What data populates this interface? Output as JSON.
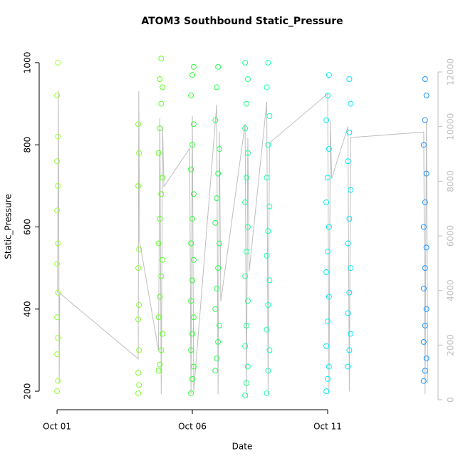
{
  "chart_data": {
    "type": "scatter",
    "title": "ATOM3 Southbound Static_Pressure",
    "xlabel": "Date",
    "ylabel": "Static_Pressure",
    "xlim": [
      -0.66,
      14.08
    ],
    "xticks": [
      {
        "value": 0,
        "label": "Oct 01"
      },
      {
        "value": 5,
        "label": "Oct 06"
      },
      {
        "value": 10,
        "label": "Oct 11"
      }
    ],
    "ylim": [
      155,
      1045
    ],
    "yticks": [
      200,
      400,
      600,
      800,
      1000
    ],
    "y2lim": [
      -365,
      13017
    ],
    "y2ticks": [
      0,
      2000,
      4000,
      6000,
      8000,
      10000,
      12000
    ],
    "y2color": "#bebebe",
    "series": [
      {
        "color": "#9aff3a",
        "x": [
          0,
          0.03,
          0,
          0.03,
          0,
          0.03,
          0,
          0.03,
          0,
          0.03,
          0,
          0.03,
          0,
          0.03
        ],
        "values": [
          200,
          225,
          290,
          330,
          380,
          440,
          510,
          560,
          640,
          700,
          760,
          820,
          920,
          1000
        ]
      },
      {
        "color": "#7fff2a",
        "x": [
          3,
          3.03,
          3,
          3.03,
          3,
          3.03,
          3,
          3.03,
          3,
          3.03,
          3
        ],
        "values": [
          195,
          215,
          245,
          300,
          375,
          410,
          500,
          545,
          700,
          780,
          850
        ]
      },
      {
        "color": "#5cff1e",
        "x": [
          3.75,
          3.8,
          3.85,
          3.9,
          3.75,
          3.8,
          3.85,
          3.9,
          3.75,
          3.8,
          3.85,
          3.9,
          3.75,
          3.8,
          3.85,
          3.9,
          3.8,
          3.85
        ],
        "values": [
          250,
          265,
          300,
          340,
          380,
          430,
          480,
          520,
          560,
          620,
          680,
          720,
          780,
          840,
          900,
          940,
          960,
          1010
        ]
      },
      {
        "color": "#2dff2d",
        "x": [
          4.95,
          5.0,
          5.05,
          4.95,
          5.0,
          5.05,
          4.95,
          5.0,
          5.05,
          4.95,
          5.0,
          5.05,
          4.95,
          5.0,
          5.05,
          4.95,
          5.0,
          5.05
        ],
        "values": [
          195,
          230,
          260,
          300,
          340,
          380,
          420,
          470,
          520,
          560,
          620,
          680,
          740,
          800,
          850,
          920,
          970,
          990
        ]
      },
      {
        "color": "#22ff55",
        "x": [
          5.85,
          5.9,
          5.95,
          6.0,
          5.85,
          5.9,
          5.95,
          6.0,
          5.85,
          5.9,
          5.95,
          6.0,
          5.85,
          5.9,
          5.95
        ],
        "values": [
          250,
          280,
          320,
          360,
          400,
          450,
          500,
          560,
          610,
          670,
          730,
          790,
          860,
          940,
          990
        ]
      },
      {
        "color": "#19ff8c",
        "x": [
          6.95,
          7.0,
          7.05,
          6.95,
          7.0,
          7.05,
          6.95,
          7.0,
          7.05,
          6.95,
          7.0,
          7.05,
          6.95,
          7.0,
          7.05,
          6.95
        ],
        "values": [
          190,
          220,
          260,
          310,
          360,
          420,
          480,
          540,
          600,
          660,
          720,
          780,
          840,
          900,
          960,
          1000
        ]
      },
      {
        "color": "#14ffb4",
        "x": [
          7.75,
          7.8,
          7.85,
          7.75,
          7.8,
          7.85,
          7.75,
          7.8,
          7.85,
          7.75,
          7.8,
          7.85,
          7.75,
          7.8
        ],
        "values": [
          195,
          250,
          300,
          350,
          410,
          470,
          530,
          590,
          650,
          720,
          800,
          870,
          940,
          1000
        ]
      },
      {
        "color": "#00f0f0",
        "x": [
          9.95,
          10.0,
          10.05,
          9.95,
          10.0,
          10.05,
          9.95,
          10.0,
          10.05,
          9.95,
          10.0,
          10.05,
          9.95,
          10.0,
          10.05
        ],
        "values": [
          200,
          230,
          260,
          310,
          370,
          430,
          490,
          540,
          600,
          660,
          720,
          790,
          860,
          920,
          970
        ]
      },
      {
        "color": "#00e5ff",
        "x": [
          10.75,
          10.8,
          10.85,
          10.75,
          10.8,
          10.85,
          10.75,
          10.8,
          10.85,
          10.75,
          10.8,
          10.85,
          10.8
        ],
        "values": [
          260,
          300,
          340,
          390,
          440,
          500,
          560,
          620,
          690,
          760,
          830,
          900,
          960
        ]
      },
      {
        "color": "#1e96ff",
        "x": [
          13.55,
          13.6,
          13.65,
          13.55,
          13.6,
          13.65,
          13.55,
          13.6,
          13.65,
          13.55,
          13.6,
          13.65,
          13.55,
          13.6,
          13.65,
          13.6
        ],
        "values": [
          225,
          250,
          280,
          320,
          360,
          400,
          450,
          500,
          550,
          600,
          660,
          730,
          800,
          860,
          920,
          960
        ]
      },
      {
        "color": "#bebebe",
        "axis": "y2",
        "line": true,
        "x": [
          0.02,
          0.05,
          0.08,
          0.1,
          3.0,
          3.02,
          3.05,
          3.75,
          3.8,
          3.85,
          3.9,
          3.95,
          4.9,
          4.95,
          5.0,
          5.05,
          5.9,
          5.95,
          6.0,
          6.05,
          6.95,
          7.0,
          7.05,
          7.1,
          7.75,
          7.8,
          7.85,
          10.0,
          10.05,
          10.1,
          10.15,
          10.75,
          10.8,
          10.85,
          13.55,
          13.6,
          13.65,
          13.7
        ],
        "values": [
          3900,
          11300,
          600,
          3900,
          1500,
          11300,
          5800,
          1800,
          10300,
          200,
          10000,
          7800,
          9200,
          200,
          10400,
          300,
          10800,
          200,
          9800,
          3600,
          10100,
          200,
          9600,
          4700,
          10900,
          200,
          9400,
          11200,
          200,
          10200,
          8100,
          10000,
          300,
          9600,
          9800,
          200,
          10200,
          600
        ]
      }
    ]
  }
}
